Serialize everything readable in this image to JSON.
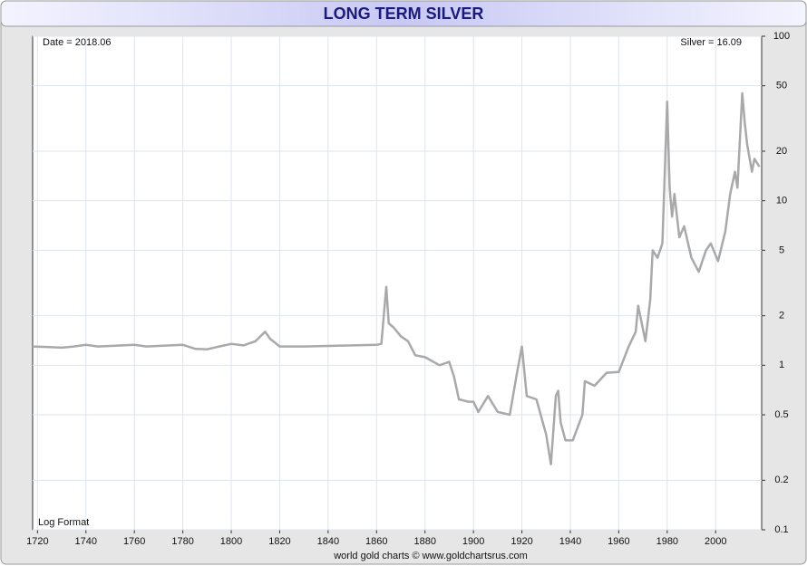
{
  "chart_data": {
    "type": "line",
    "title": "LONG TERM SILVER",
    "annotations": {
      "date": "Date = 2018.06",
      "last": "Silver = 16.09",
      "format": "Log Format",
      "source": "world gold charts © www.goldchartsrus.com"
    },
    "log_y": true,
    "grid": true,
    "xlim": [
      1718,
      2019
    ],
    "ylim": [
      0.1,
      100
    ],
    "xticks": [
      1720,
      1740,
      1760,
      1780,
      1800,
      1820,
      1840,
      1860,
      1880,
      1900,
      1920,
      1940,
      1960,
      1980,
      2000
    ],
    "yticks": [
      0.1,
      0.2,
      0.5,
      1,
      2,
      5,
      10,
      20,
      50,
      100
    ],
    "x": [
      1718,
      1725,
      1730,
      1735,
      1740,
      1745,
      1750,
      1755,
      1760,
      1765,
      1770,
      1775,
      1780,
      1785,
      1790,
      1795,
      1800,
      1805,
      1810,
      1814,
      1816,
      1820,
      1830,
      1840,
      1850,
      1860,
      1862,
      1864,
      1865,
      1867,
      1870,
      1873,
      1876,
      1880,
      1886,
      1890,
      1892,
      1894,
      1898,
      1900,
      1902,
      1906,
      1910,
      1915,
      1918,
      1920,
      1922,
      1926,
      1930,
      1932,
      1934,
      1935,
      1936,
      1938,
      1941,
      1945,
      1946,
      1950,
      1955,
      1960,
      1964,
      1967,
      1968,
      1971,
      1973,
      1974,
      1976,
      1978,
      1980,
      1981,
      1982,
      1983,
      1985,
      1987,
      1990,
      1993,
      1996,
      1998,
      2001,
      2004,
      2006,
      2008,
      2009,
      2011,
      2012,
      2013,
      2015,
      2016,
      2018.06
    ],
    "series": [
      {
        "name": "Silver",
        "color": "#a9a9a9",
        "values": [
          1.3,
          1.29,
          1.28,
          1.3,
          1.33,
          1.3,
          1.31,
          1.32,
          1.33,
          1.3,
          1.31,
          1.32,
          1.33,
          1.26,
          1.25,
          1.3,
          1.35,
          1.32,
          1.4,
          1.6,
          1.45,
          1.3,
          1.3,
          1.31,
          1.32,
          1.33,
          1.35,
          3.0,
          1.8,
          1.7,
          1.5,
          1.4,
          1.15,
          1.12,
          1.0,
          1.05,
          0.85,
          0.62,
          0.6,
          0.6,
          0.52,
          0.65,
          0.52,
          0.5,
          0.9,
          1.3,
          0.65,
          0.62,
          0.38,
          0.25,
          0.65,
          0.7,
          0.45,
          0.35,
          0.35,
          0.5,
          0.8,
          0.75,
          0.9,
          0.91,
          1.29,
          1.6,
          2.3,
          1.4,
          2.5,
          5.0,
          4.5,
          5.5,
          40,
          12,
          8,
          11,
          6,
          7,
          4.5,
          3.7,
          5,
          5.5,
          4.3,
          6.5,
          11,
          15,
          12,
          45,
          30,
          22,
          15,
          18,
          16.09
        ]
      }
    ]
  }
}
